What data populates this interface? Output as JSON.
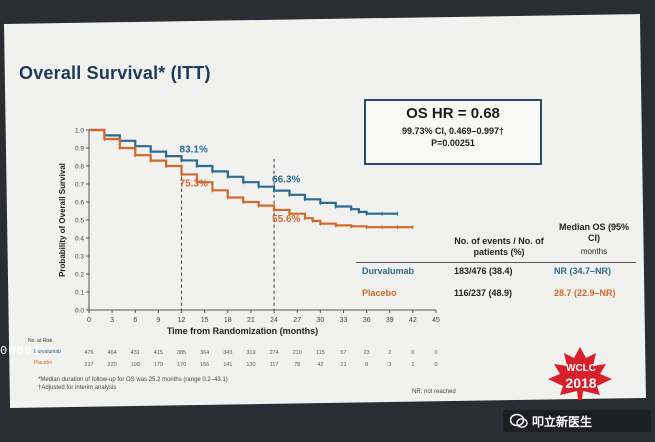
{
  "slide": {
    "title": "Overall Survival* (ITT)",
    "hr_box": {
      "main": "OS HR = 0.68",
      "ci": "99.73% CI, 0.469–0.997†",
      "p": "P=0.00251"
    },
    "footnote_1": "*Median duration of follow-up for OS was 25.2 months (range 0.2–43.1)",
    "footnote_2": "†Adjusted for interim analysis",
    "nr_note": "NR, not reached",
    "risk_header": "No. at Risk",
    "counter": "00801",
    "conference": {
      "line1": "WCLC",
      "line2": "2018"
    },
    "watermark": "叩立新医生"
  },
  "table": {
    "headers": {
      "events": "No. of events / No. of patients (%)",
      "median": "Median OS (95% CI)",
      "unit": "months"
    },
    "rows": [
      {
        "arm": "Durvalumab",
        "events": "183/476 (38.4)",
        "median": "NR (34.7–NR)",
        "color": "#2c6a91"
      },
      {
        "arm": "Placebo",
        "events": "116/237 (48.9)",
        "median": "28.7 (22.9–NR)",
        "color": "#d2692a"
      }
    ]
  },
  "chart_data": {
    "type": "line",
    "xlabel": "Time from Randomization (months)",
    "ylabel": "Probability of Overall Survival",
    "xlim": [
      0,
      45
    ],
    "ylim": [
      0,
      1.0
    ],
    "xticks": [
      0,
      3,
      6,
      9,
      12,
      15,
      18,
      21,
      24,
      27,
      30,
      33,
      36,
      39,
      42,
      45
    ],
    "yticks": [
      0.0,
      0.1,
      0.2,
      0.3,
      0.4,
      0.5,
      0.6,
      0.7,
      0.8,
      0.9,
      1.0
    ],
    "series": [
      {
        "name": "Durvalumab",
        "color": "#2c6a91",
        "x": [
          0,
          2,
          4,
          6,
          8,
          10,
          12,
          14,
          16,
          18,
          20,
          22,
          24,
          26,
          28,
          30,
          32,
          34,
          35,
          36,
          38,
          40
        ],
        "y": [
          1.0,
          0.97,
          0.94,
          0.91,
          0.88,
          0.855,
          0.831,
          0.8,
          0.77,
          0.74,
          0.71,
          0.685,
          0.663,
          0.64,
          0.615,
          0.595,
          0.575,
          0.56,
          0.545,
          0.535,
          0.535,
          0.535
        ]
      },
      {
        "name": "Placebo",
        "color": "#d2692a",
        "x": [
          0,
          2,
          4,
          6,
          8,
          10,
          12,
          14,
          16,
          18,
          20,
          22,
          24,
          26,
          28,
          29,
          30,
          32,
          34,
          36,
          38,
          40,
          42
        ],
        "y": [
          1.0,
          0.95,
          0.9,
          0.86,
          0.83,
          0.8,
          0.753,
          0.71,
          0.665,
          0.625,
          0.6,
          0.58,
          0.556,
          0.535,
          0.51,
          0.495,
          0.48,
          0.47,
          0.465,
          0.46,
          0.46,
          0.46,
          0.46
        ]
      }
    ],
    "annotations": [
      {
        "text": "83.1%",
        "series": "Durvalumab",
        "x": 12,
        "y": 0.831
      },
      {
        "text": "66.3%",
        "series": "Durvalumab",
        "x": 24,
        "y": 0.663
      },
      {
        "text": "75.3%",
        "series": "Placebo",
        "x": 12,
        "y": 0.753
      },
      {
        "text": "55.6%",
        "series": "Placebo",
        "x": 24,
        "y": 0.556
      }
    ],
    "number_at_risk": {
      "Durvalumab": [
        "476",
        "464",
        "431",
        "415",
        "385",
        "364",
        "343",
        "319",
        "274",
        "210",
        "115",
        "57",
        "23",
        "2",
        "0",
        "0"
      ],
      "Placebo": [
        "237",
        "220",
        "199",
        "179",
        "170",
        "156",
        "141",
        "130",
        "117",
        "78",
        "42",
        "21",
        "8",
        "3",
        "1",
        "0"
      ]
    }
  }
}
